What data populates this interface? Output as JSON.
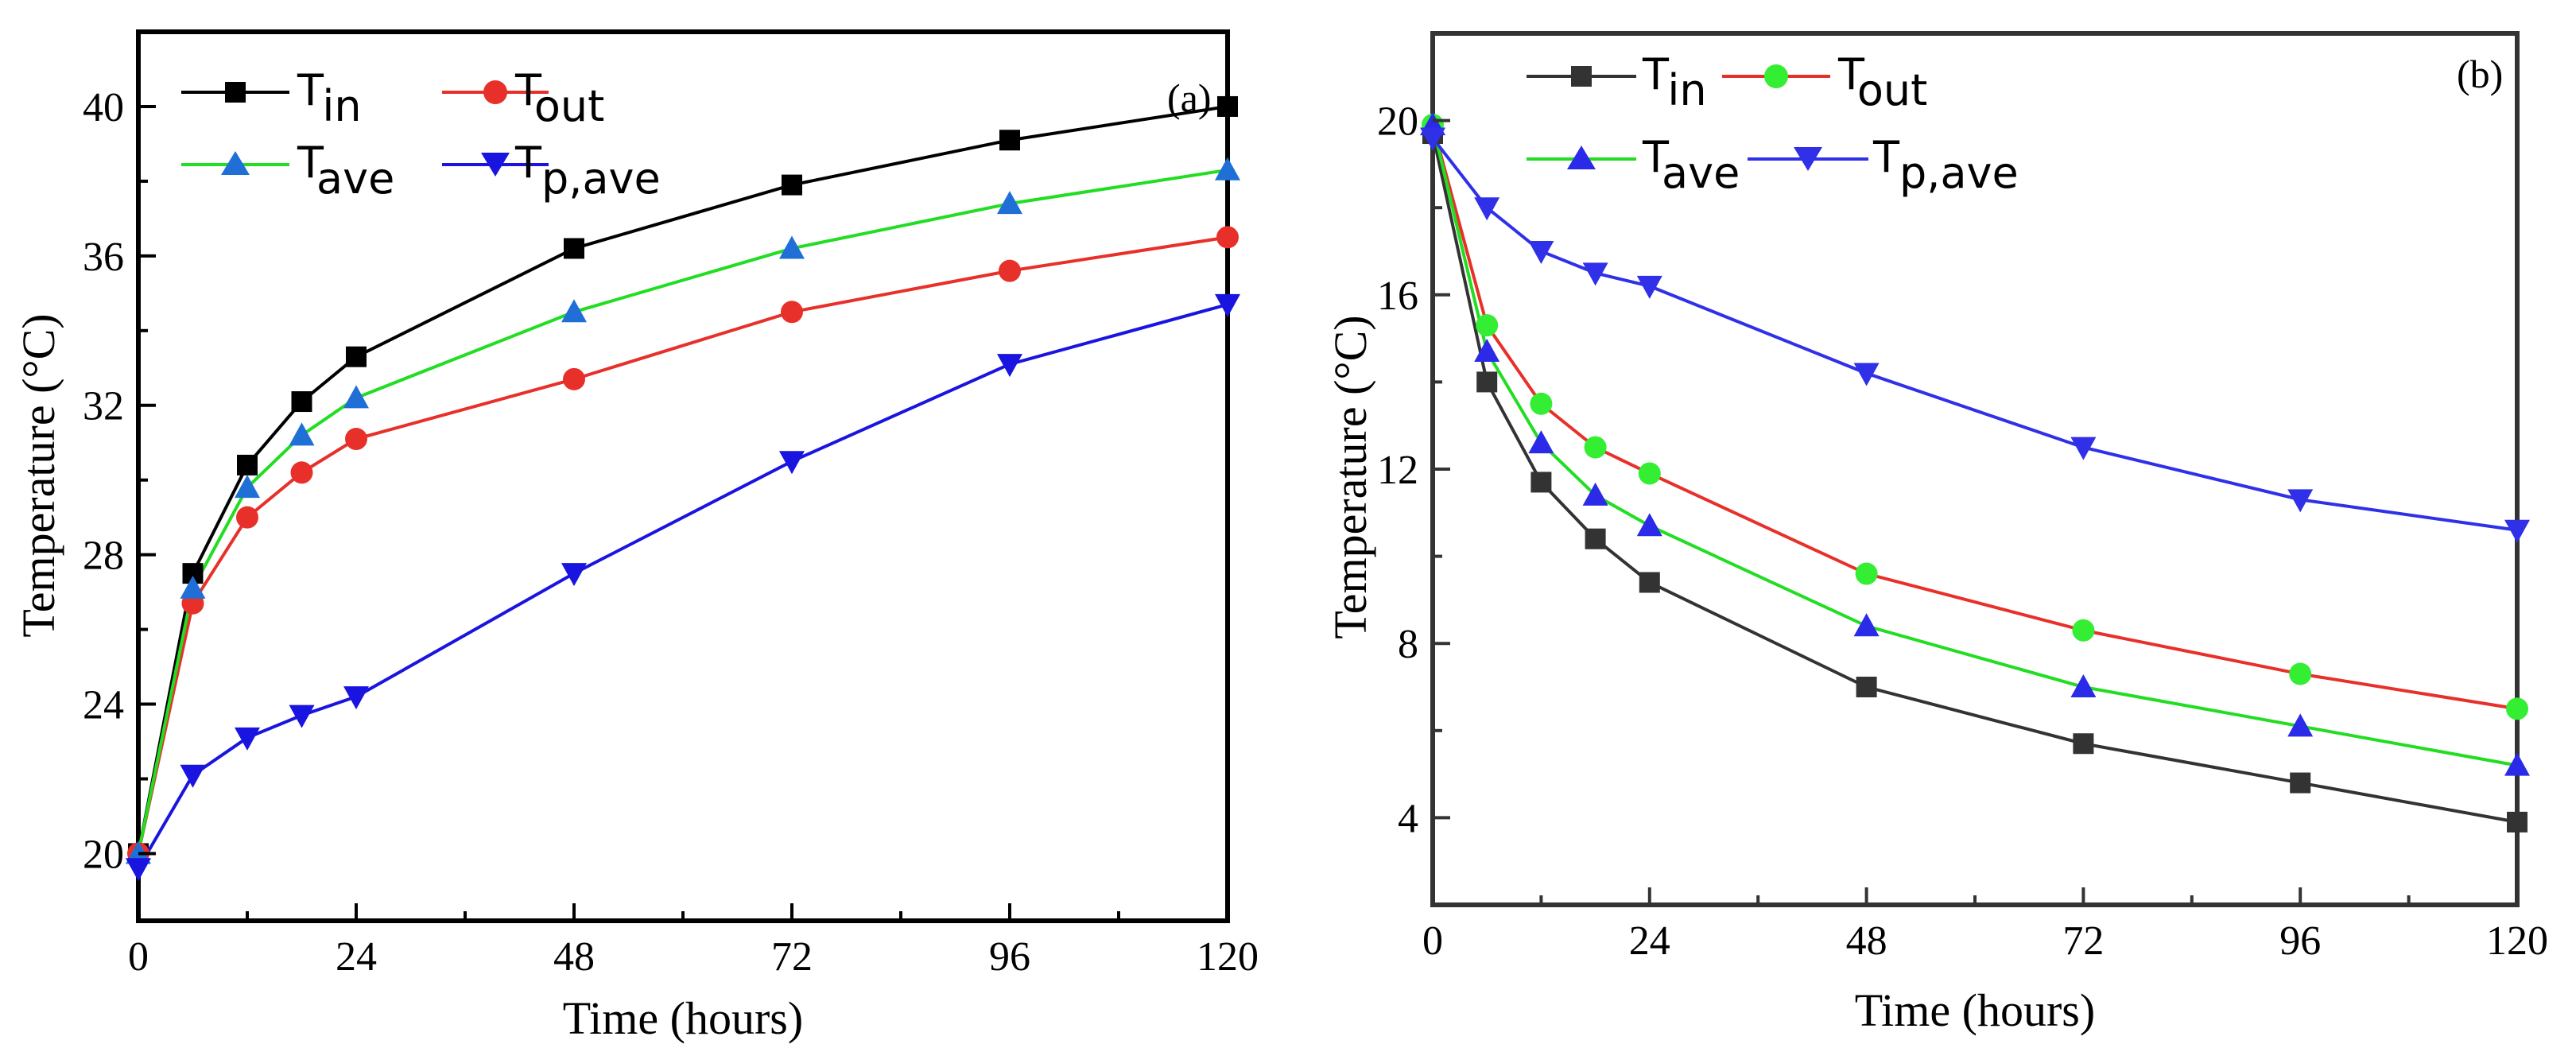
{
  "chart_data": [
    {
      "type": "line",
      "panel_label": "(a)",
      "xlabel": "Time (hours)",
      "ylabel": "Temperature (°C)",
      "xlim": [
        0,
        120
      ],
      "ylim": [
        18.2,
        42
      ],
      "xticks": [
        0,
        24,
        48,
        72,
        96,
        120
      ],
      "yticks": [
        20,
        24,
        28,
        32,
        36,
        40
      ],
      "x": [
        0,
        6,
        12,
        18,
        24,
        48,
        72,
        96,
        120
      ],
      "legend_position": "top-left",
      "series": [
        {
          "key": "tin",
          "name": "T",
          "sub": "in",
          "color": "#000000",
          "marker": "square",
          "values": [
            20.0,
            27.5,
            30.4,
            32.1,
            33.3,
            36.2,
            37.9,
            39.1,
            40.0
          ]
        },
        {
          "key": "tout",
          "name": "T",
          "sub": "out",
          "color": "#e8302a",
          "marker": "circle",
          "values": [
            20.0,
            26.7,
            29.0,
            30.2,
            31.1,
            32.7,
            34.5,
            35.6,
            36.5
          ]
        },
        {
          "key": "tave",
          "name": "T",
          "sub": "ave",
          "color": "#1f6fd6",
          "line_color": "#22dd22",
          "marker": "triangle-up",
          "values": [
            20.0,
            27.1,
            29.8,
            31.2,
            32.2,
            34.5,
            36.2,
            37.4,
            38.3
          ]
        },
        {
          "key": "tpave",
          "name": "T",
          "sub": "p,ave",
          "color": "#1a14e0",
          "marker": "triangle-down",
          "values": [
            19.6,
            22.1,
            23.1,
            23.7,
            24.2,
            27.5,
            30.5,
            33.1,
            34.7
          ]
        }
      ]
    },
    {
      "type": "line",
      "panel_label": "(b)",
      "xlabel": "Time (hours)",
      "ylabel": "Temperature (°C)",
      "xlim": [
        0,
        120
      ],
      "ylim": [
        2,
        22
      ],
      "xticks": [
        0,
        24,
        48,
        72,
        96,
        120
      ],
      "yticks": [
        4,
        8,
        12,
        16,
        20
      ],
      "x": [
        0,
        6,
        12,
        18,
        24,
        48,
        72,
        96,
        120
      ],
      "legend_position": "top-left",
      "series": [
        {
          "key": "tin",
          "name": "T",
          "sub": "in",
          "color": "#333333",
          "marker": "square",
          "values": [
            19.7,
            14.0,
            11.7,
            10.4,
            9.4,
            7.0,
            5.7,
            4.8,
            3.9
          ]
        },
        {
          "key": "tout",
          "name": "T",
          "sub": "out",
          "color": "#33ee33",
          "line_color": "#e8302a",
          "marker": "circle",
          "values": [
            19.9,
            15.3,
            13.5,
            12.5,
            11.9,
            9.6,
            8.3,
            7.3,
            6.5
          ]
        },
        {
          "key": "tave",
          "name": "T",
          "sub": "ave",
          "color": "#2a2ae8",
          "line_color": "#22dd22",
          "marker": "triangle-up",
          "values": [
            19.9,
            14.7,
            12.6,
            11.4,
            10.7,
            8.4,
            7.0,
            6.1,
            5.2
          ]
        },
        {
          "key": "tpave",
          "name": "T",
          "sub": "p,ave",
          "color": "#3030e8",
          "marker": "triangle-down",
          "values": [
            19.6,
            18.0,
            17.0,
            16.5,
            16.2,
            14.2,
            12.5,
            11.3,
            10.6
          ]
        }
      ]
    }
  ]
}
